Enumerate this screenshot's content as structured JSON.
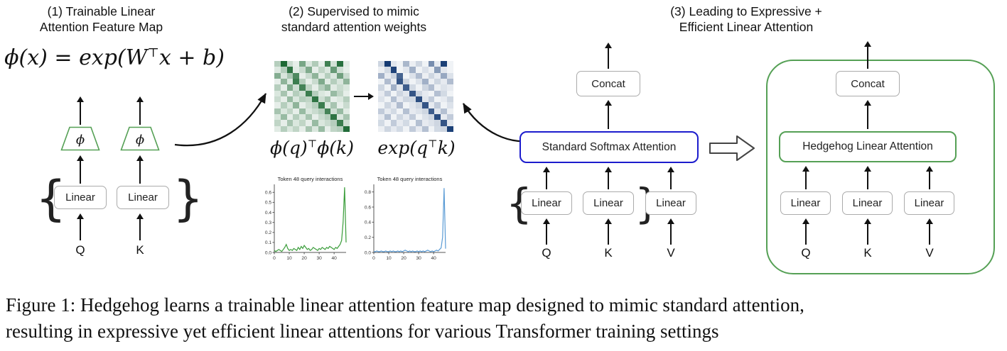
{
  "colors": {
    "green_accent": "#55a055",
    "blue_accent": "#1c1ccd",
    "gray_box_border": "#ababab",
    "arrow_black": "#111111",
    "heatmap_green": "#0a5c23",
    "heatmap_blue": "#08306b",
    "plot_green_line": "#3a9d3a",
    "plot_blue_line": "#5a9bd5"
  },
  "panel1": {
    "title_line1": "(1)  Trainable Linear",
    "title_line2": "Attention Feature Map",
    "formula_pre": "ϕ(x) = exp(W",
    "formula_sup": "⊤",
    "formula_post": "x + b)",
    "phi": "ϕ",
    "linear1": "Linear",
    "linear2": "Linear",
    "brace_left": "{",
    "brace_right": "}",
    "q": "Q",
    "k": "K"
  },
  "panel2": {
    "title_line1": "(2) Supervised to mimic",
    "title_line2": "standard attention weights",
    "label_green_pre": "ϕ(q)",
    "label_green_sup": "⊤",
    "label_green_post": "ϕ(k)",
    "label_blue_pre": "exp(q",
    "label_blue_sup": "⊤",
    "label_blue_post": "k)",
    "heatmap_green": {
      "color": "#0a5c23",
      "matrix": [
        [
          0.3,
          0.92,
          0.22,
          0.1,
          0.55,
          0.15,
          0.32,
          0.1,
          0.78,
          0.18,
          0.88,
          0.12
        ],
        [
          0.14,
          0.3,
          0.85,
          0.12,
          0.22,
          0.52,
          0.1,
          0.26,
          0.15,
          0.62,
          0.2,
          0.1
        ],
        [
          0.5,
          0.16,
          0.35,
          0.72,
          0.1,
          0.22,
          0.46,
          0.12,
          0.3,
          0.15,
          0.58,
          0.22
        ],
        [
          0.1,
          0.46,
          0.15,
          0.8,
          0.3,
          0.1,
          0.22,
          0.52,
          0.12,
          0.3,
          0.16,
          0.46
        ],
        [
          0.3,
          0.1,
          0.52,
          0.2,
          0.76,
          0.26,
          0.1,
          0.3,
          0.46,
          0.12,
          0.22,
          0.15
        ],
        [
          0.15,
          0.36,
          0.1,
          0.3,
          0.2,
          0.8,
          0.3,
          0.15,
          0.1,
          0.42,
          0.26,
          0.1
        ],
        [
          0.22,
          0.1,
          0.42,
          0.15,
          0.3,
          0.26,
          0.85,
          0.2,
          0.36,
          0.1,
          0.15,
          0.3
        ],
        [
          0.1,
          0.3,
          0.15,
          0.46,
          0.1,
          0.2,
          0.3,
          0.8,
          0.15,
          0.36,
          0.1,
          0.22
        ],
        [
          0.36,
          0.15,
          0.26,
          0.1,
          0.42,
          0.15,
          0.22,
          0.3,
          0.76,
          0.2,
          0.42,
          0.12
        ],
        [
          0.15,
          0.42,
          0.1,
          0.3,
          0.15,
          0.36,
          0.1,
          0.22,
          0.3,
          0.85,
          0.15,
          0.36
        ],
        [
          0.26,
          0.1,
          0.36,
          0.15,
          0.26,
          0.1,
          0.42,
          0.15,
          0.22,
          0.3,
          0.8,
          0.2
        ],
        [
          0.12,
          0.3,
          0.15,
          0.26,
          0.1,
          0.36,
          0.15,
          0.42,
          0.1,
          0.26,
          0.3,
          0.9
        ]
      ]
    },
    "heatmap_blue": {
      "color": "#08306b",
      "matrix": [
        [
          0.2,
          0.95,
          0.12,
          0.06,
          0.35,
          0.08,
          0.2,
          0.06,
          0.55,
          0.1,
          0.92,
          0.06
        ],
        [
          0.08,
          0.18,
          0.9,
          0.06,
          0.12,
          0.38,
          0.06,
          0.15,
          0.08,
          0.48,
          0.12,
          0.06
        ],
        [
          0.38,
          0.1,
          0.22,
          0.75,
          0.06,
          0.14,
          0.32,
          0.08,
          0.2,
          0.1,
          0.42,
          0.14
        ],
        [
          0.06,
          0.32,
          0.1,
          0.82,
          0.2,
          0.06,
          0.14,
          0.38,
          0.08,
          0.2,
          0.1,
          0.32
        ],
        [
          0.2,
          0.06,
          0.38,
          0.12,
          0.78,
          0.18,
          0.06,
          0.2,
          0.32,
          0.08,
          0.14,
          0.1
        ],
        [
          0.1,
          0.25,
          0.06,
          0.2,
          0.12,
          0.82,
          0.2,
          0.1,
          0.06,
          0.3,
          0.18,
          0.06
        ],
        [
          0.14,
          0.06,
          0.3,
          0.1,
          0.2,
          0.18,
          0.86,
          0.12,
          0.25,
          0.06,
          0.1,
          0.2
        ],
        [
          0.06,
          0.2,
          0.1,
          0.32,
          0.06,
          0.12,
          0.2,
          0.82,
          0.1,
          0.25,
          0.06,
          0.14
        ],
        [
          0.25,
          0.1,
          0.18,
          0.06,
          0.3,
          0.1,
          0.14,
          0.2,
          0.78,
          0.12,
          0.3,
          0.08
        ],
        [
          0.1,
          0.3,
          0.06,
          0.2,
          0.1,
          0.25,
          0.06,
          0.14,
          0.2,
          0.86,
          0.1,
          0.25
        ],
        [
          0.18,
          0.06,
          0.25,
          0.1,
          0.18,
          0.06,
          0.3,
          0.1,
          0.14,
          0.2,
          0.82,
          0.12
        ],
        [
          0.08,
          0.2,
          0.1,
          0.18,
          0.06,
          0.25,
          0.1,
          0.3,
          0.06,
          0.18,
          0.2,
          0.92
        ]
      ]
    },
    "plot_green": {
      "type": "line",
      "title": "Token 48 query interactions",
      "color": "#3a9d3a",
      "y_ticks": [
        "0.0",
        "0.1",
        "0.2",
        "0.3",
        "0.4",
        "0.5",
        "0.6"
      ],
      "y_max": 0.68,
      "x_ticks": [
        0,
        10,
        20,
        30,
        40
      ],
      "x_max": 48,
      "values": [
        0.02,
        0.01,
        0.02,
        0.03,
        0.02,
        0.01,
        0.03,
        0.05,
        0.08,
        0.04,
        0.02,
        0.03,
        0.02,
        0.04,
        0.03,
        0.02,
        0.05,
        0.03,
        0.06,
        0.04,
        0.07,
        0.05,
        0.03,
        0.04,
        0.02,
        0.03,
        0.05,
        0.04,
        0.03,
        0.02,
        0.04,
        0.03,
        0.05,
        0.04,
        0.03,
        0.05,
        0.04,
        0.06,
        0.05,
        0.04,
        0.03,
        0.05,
        0.04,
        0.06,
        0.08,
        0.12,
        0.3,
        0.65,
        0.1
      ]
    },
    "plot_blue": {
      "type": "line",
      "title": "Token 48 query interactions",
      "color": "#5a9bd5",
      "y_ticks": [
        "0.0",
        "0.2",
        "0.4",
        "0.6",
        "0.8"
      ],
      "y_max": 0.9,
      "x_ticks": [
        0,
        10,
        20,
        30,
        40
      ],
      "x_max": 48,
      "values": [
        0.01,
        0.01,
        0.02,
        0.01,
        0.01,
        0.02,
        0.01,
        0.01,
        0.02,
        0.01,
        0.01,
        0.02,
        0.01,
        0.02,
        0.01,
        0.01,
        0.02,
        0.01,
        0.02,
        0.01,
        0.02,
        0.03,
        0.02,
        0.01,
        0.02,
        0.01,
        0.02,
        0.01,
        0.01,
        0.02,
        0.01,
        0.02,
        0.01,
        0.02,
        0.01,
        0.02,
        0.03,
        0.02,
        0.01,
        0.02,
        0.01,
        0.02,
        0.03,
        0.02,
        0.04,
        0.06,
        0.2,
        0.85,
        0.05
      ]
    }
  },
  "panel3": {
    "title_line1": "(3) Leading to Expressive +",
    "title_line2": "Efficient Linear Attention",
    "left": {
      "concat": "Concat",
      "attention": "Standard Softmax Attention",
      "linear1": "Linear",
      "linear2": "Linear",
      "linear3": "Linear",
      "brace_left": "{",
      "brace_right": "}",
      "q": "Q",
      "k": "K",
      "v": "V"
    },
    "right": {
      "concat": "Concat",
      "attention": "Hedgehog Linear Attention",
      "linear1": "Linear",
      "linear2": "Linear",
      "linear3": "Linear",
      "q": "Q",
      "k": "K",
      "v": "V"
    }
  },
  "caption": {
    "line1": "Figure 1: Hedgehog learns a trainable linear attention feature map designed to mimic standard attention,",
    "line2": "resulting in expressive yet efficient linear attentions for various Transformer training settings"
  }
}
